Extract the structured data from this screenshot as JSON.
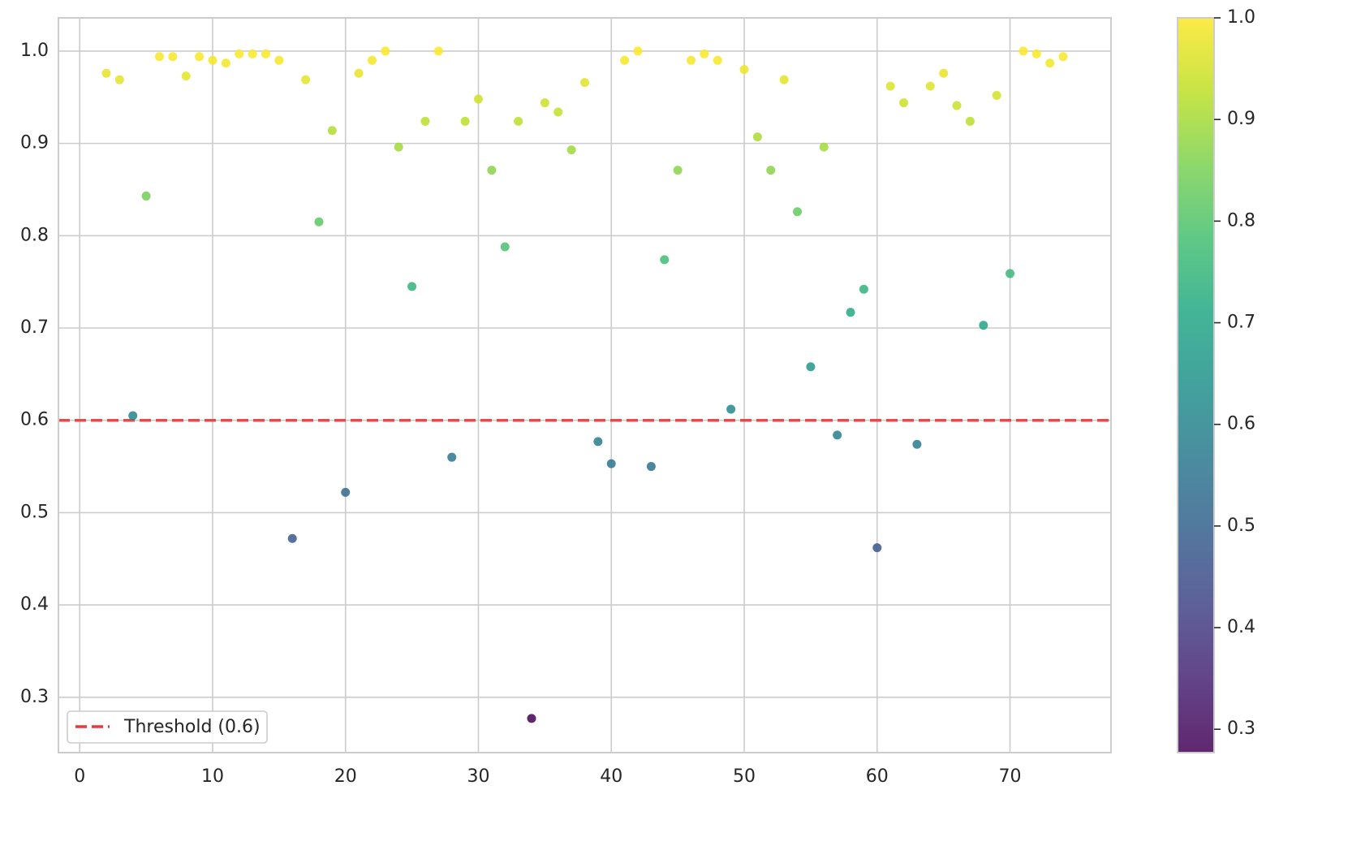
{
  "chart_data": {
    "type": "scatter",
    "x": [
      2,
      3,
      4,
      5,
      6,
      7,
      8,
      9,
      10,
      11,
      12,
      13,
      14,
      15,
      16,
      17,
      18,
      19,
      20,
      21,
      22,
      23,
      24,
      25,
      26,
      27,
      28,
      29,
      30,
      31,
      32,
      33,
      34,
      35,
      36,
      37,
      38,
      39,
      40,
      41,
      42,
      43,
      44,
      45,
      46,
      47,
      48,
      49,
      50,
      51,
      52,
      53,
      54,
      55,
      56,
      57,
      58,
      59,
      60,
      61,
      62,
      63,
      64,
      65,
      66,
      67,
      68,
      69,
      70,
      71,
      72,
      73,
      74
    ],
    "values": [
      0.976,
      0.969,
      0.605,
      0.843,
      0.994,
      0.994,
      0.973,
      0.994,
      0.99,
      0.987,
      0.997,
      0.997,
      0.997,
      0.99,
      0.472,
      0.969,
      0.815,
      0.914,
      0.522,
      0.976,
      0.99,
      1.0,
      0.896,
      0.745,
      0.924,
      1.0,
      0.56,
      0.924,
      0.948,
      0.871,
      0.788,
      0.924,
      0.277,
      0.944,
      0.934,
      0.893,
      0.966,
      0.577,
      0.553,
      0.99,
      1.0,
      0.55,
      0.774,
      0.871,
      0.99,
      0.997,
      0.99,
      0.612,
      0.98,
      0.907,
      0.871,
      0.969,
      0.826,
      0.658,
      0.896,
      0.584,
      0.717,
      0.742,
      0.462,
      0.962,
      0.944,
      0.574,
      0.962,
      0.976,
      0.941,
      0.924,
      0.703,
      0.952,
      0.759,
      1.0,
      0.997,
      0.987,
      0.994
    ],
    "colormap": "viridis",
    "clim": [
      0.277,
      1.0
    ],
    "cticks": [
      0.3,
      0.4,
      0.5,
      0.6,
      0.7,
      0.8,
      0.9,
      {
        "value": 1.0,
        "label": "1.0"
      }
    ],
    "xlim": [
      -1.6,
      77.6
    ],
    "xticks": [
      0,
      10,
      20,
      30,
      40,
      50,
      60,
      70
    ],
    "ylim": [
      0.24,
      1.036
    ],
    "yticks": [
      0.3,
      0.4,
      0.5,
      0.6,
      0.7,
      0.8,
      0.9,
      {
        "value": 1.0,
        "label": "1.0"
      }
    ],
    "grid": true,
    "threshold": {
      "value": 0.6,
      "label": "Threshold (0.6)",
      "color": "#e83a3a"
    },
    "legend": "lower left"
  }
}
